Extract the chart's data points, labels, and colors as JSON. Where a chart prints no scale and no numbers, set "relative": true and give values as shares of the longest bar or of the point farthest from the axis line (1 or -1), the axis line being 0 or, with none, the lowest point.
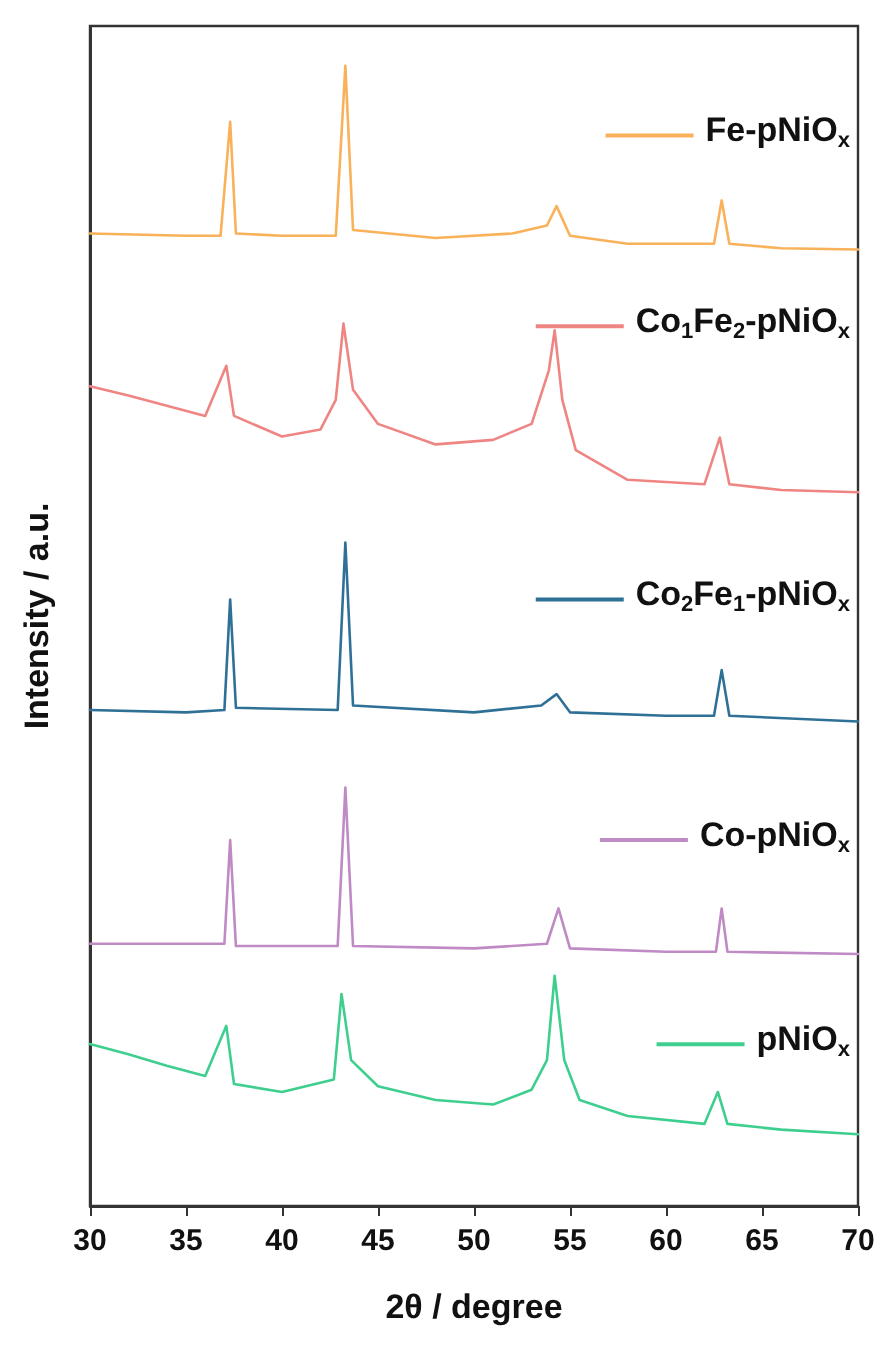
{
  "chart_data": {
    "type": "line",
    "relative": true,
    "xlabel": "2θ / degree",
    "ylabel": "Intensity / a.u.",
    "xlim": [
      30,
      70
    ],
    "xticks": [
      30,
      35,
      40,
      45,
      50,
      55,
      60,
      65,
      70
    ],
    "tick_labels": "x",
    "grid": false,
    "marker": "none",
    "legend": "right",
    "series": [
      {
        "name": "Fe-pNiO$_{x}$",
        "color": "#f9b15a",
        "x": [
          30,
          35,
          36.8,
          37.3,
          37.6,
          40,
          42.8,
          43.3,
          43.7,
          48,
          52,
          53.8,
          54.3,
          55,
          58,
          62.5,
          62.9,
          63.3,
          66,
          70
        ],
        "values": [
          0.853,
          0.851,
          0.851,
          0.951,
          0.853,
          0.851,
          0.851,
          1.0,
          0.856,
          0.849,
          0.853,
          0.86,
          0.877,
          0.851,
          0.844,
          0.844,
          0.882,
          0.844,
          0.84,
          0.839
        ]
      },
      {
        "name": "Co$_{1}$Fe$_{2}$-pNiO$_{x}$",
        "color": "#ef8583",
        "x": [
          30,
          32,
          34,
          36,
          37.1,
          37.5,
          40,
          42,
          42.8,
          43.2,
          43.7,
          45,
          48,
          51,
          53,
          53.9,
          54.2,
          54.6,
          55.3,
          58,
          62,
          62.8,
          63.3,
          66,
          70
        ],
        "values": [
          0.719,
          0.711,
          0.702,
          0.693,
          0.737,
          0.693,
          0.675,
          0.681,
          0.707,
          0.774,
          0.716,
          0.686,
          0.668,
          0.672,
          0.686,
          0.733,
          0.768,
          0.707,
          0.663,
          0.637,
          0.633,
          0.674,
          0.633,
          0.628,
          0.626
        ]
      },
      {
        "name": "Co$_{2}$Fe$_{1}$-pNiO$_{x}$",
        "color": "#2f7196",
        "x": [
          30,
          35,
          37,
          37.3,
          37.6,
          42.9,
          43.3,
          43.7,
          50,
          53.5,
          54.3,
          55,
          60,
          62.5,
          62.9,
          63.3,
          70
        ],
        "values": [
          0.435,
          0.433,
          0.435,
          0.532,
          0.437,
          0.435,
          0.582,
          0.439,
          0.433,
          0.439,
          0.449,
          0.433,
          0.43,
          0.43,
          0.47,
          0.43,
          0.425
        ]
      },
      {
        "name": "Co-pNiO$_{x}$",
        "color": "#c08ac5",
        "x": [
          30,
          35,
          37.0,
          37.3,
          37.6,
          42.9,
          43.3,
          43.7,
          50,
          53.8,
          54.4,
          55,
          60,
          62.6,
          62.9,
          63.2,
          70
        ],
        "values": [
          0.23,
          0.23,
          0.23,
          0.321,
          0.228,
          0.228,
          0.367,
          0.228,
          0.226,
          0.23,
          0.261,
          0.226,
          0.223,
          0.223,
          0.261,
          0.223,
          0.221
        ]
      },
      {
        "name": "pNiO$_{x}$",
        "color": "#3ecf8e",
        "x": [
          30,
          32,
          34,
          36,
          37.1,
          37.5,
          40,
          42.7,
          43.1,
          43.6,
          45,
          48,
          51,
          53,
          53.8,
          54.2,
          54.7,
          55.5,
          58,
          62,
          62.7,
          63.2,
          66,
          70
        ],
        "values": [
          0.142,
          0.133,
          0.123,
          0.114,
          0.158,
          0.107,
          0.1,
          0.111,
          0.186,
          0.128,
          0.105,
          0.093,
          0.089,
          0.102,
          0.128,
          0.202,
          0.128,
          0.093,
          0.079,
          0.072,
          0.1,
          0.072,
          0.067,
          0.063
        ]
      }
    ]
  }
}
